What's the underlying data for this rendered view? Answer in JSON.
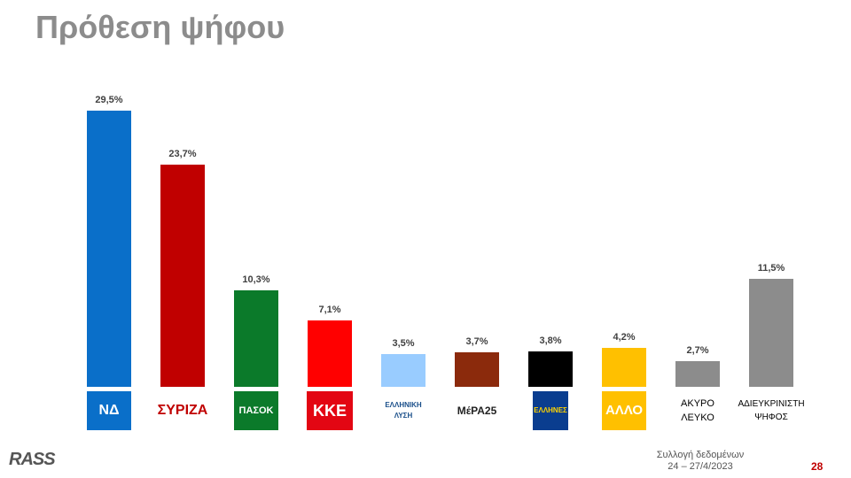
{
  "chart_data": {
    "type": "bar",
    "title": "Πρόθεση ψήφου",
    "categories": [
      "ΝΔ",
      "ΣΥΡΙΖΑ",
      "ΠΑΣΟΚ",
      "ΚΚΕ",
      "ΕΛΛΗΝΙΚΗ ΛΥΣΗ",
      "ΜέΡΑ25",
      "ΕΛΛΗΝΕΣ",
      "ΑΛΛΟ",
      "ΑΚΥΡΟ ΛΕΥΚΟ",
      "ΑΔΙΕΥΚΡΙΝΙΣΤΗ ΨΗΦΟΣ"
    ],
    "values": [
      29.5,
      23.7,
      10.3,
      7.1,
      3.5,
      3.7,
      3.8,
      4.2,
      2.7,
      11.5
    ],
    "value_labels": [
      "29,5%",
      "23,7%",
      "10,3%",
      "7,1%",
      "3,5%",
      "3,7%",
      "3,8%",
      "4,2%",
      "2,7%",
      "11,5%"
    ],
    "colors": [
      "#0a6fc9",
      "#c00000",
      "#0b7a2a",
      "#ff0000",
      "#99ccff",
      "#8b2a0c",
      "#000000",
      "#ffc000",
      "#8c8c8c",
      "#8c8c8c"
    ]
  },
  "footer": {
    "brand": "RASS",
    "note": "Συλλογή δεδομένων",
    "dates": "24 – 27/4/2023",
    "page": "28"
  }
}
